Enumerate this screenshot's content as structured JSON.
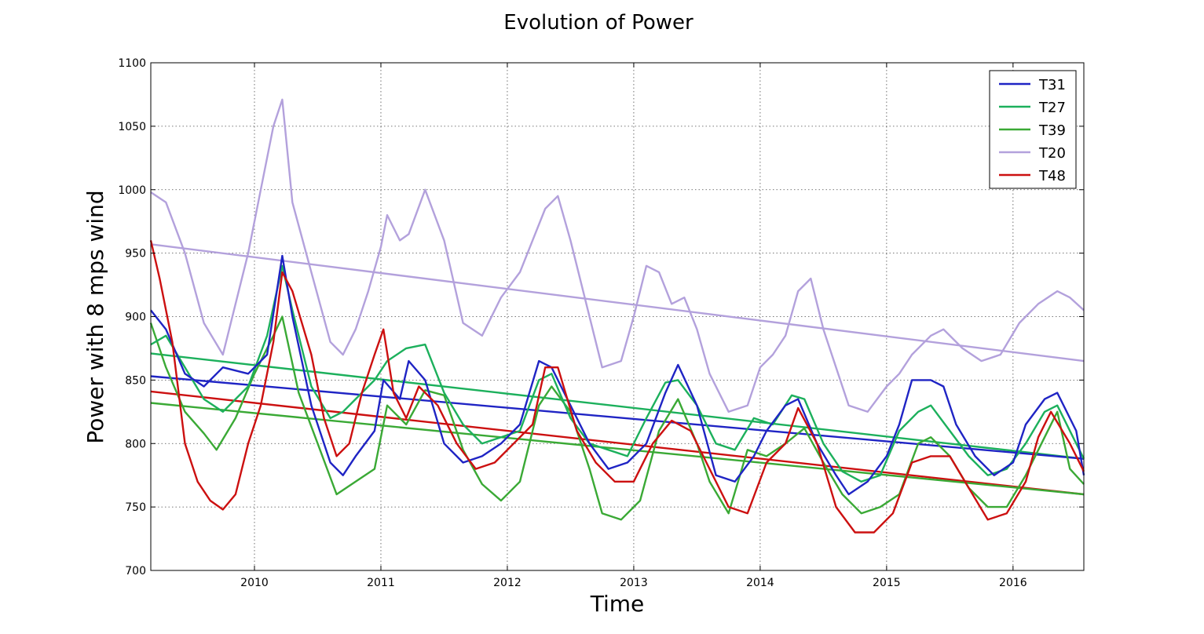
{
  "chart_data": {
    "type": "line",
    "title": "Evolution of Power",
    "xlabel": "Time",
    "ylabel": "Power with 8 mps wind",
    "xlim": [
      2009.18,
      2016.56
    ],
    "ylim": [
      700,
      1100
    ],
    "xticks": [
      2010,
      2011,
      2012,
      2013,
      2014,
      2015,
      2016
    ],
    "xtick_labels": [
      "2010",
      "2011",
      "2012",
      "2013",
      "2014",
      "2015",
      "2016"
    ],
    "yticks": [
      700,
      750,
      800,
      850,
      900,
      950,
      1000,
      1050,
      1100
    ],
    "ytick_labels": [
      "700",
      "750",
      "800",
      "850",
      "900",
      "950",
      "1000",
      "1050",
      "1100"
    ],
    "grid": true,
    "legend_position": "top-right",
    "series": [
      {
        "name": "T31",
        "color": "#1f24c4",
        "x": [
          2009.18,
          2009.3,
          2009.45,
          2009.6,
          2009.75,
          2009.95,
          2010.1,
          2010.22,
          2010.3,
          2010.45,
          2010.6,
          2010.7,
          2010.8,
          2010.95,
          2011.02,
          2011.15,
          2011.22,
          2011.35,
          2011.5,
          2011.65,
          2011.8,
          2011.95,
          2012.1,
          2012.25,
          2012.35,
          2012.5,
          2012.65,
          2012.8,
          2012.95,
          2013.1,
          2013.25,
          2013.35,
          2013.5,
          2013.65,
          2013.8,
          2013.95,
          2014.05,
          2014.2,
          2014.3,
          2014.45,
          2014.6,
          2014.7,
          2014.85,
          2015.0,
          2015.1,
          2015.2,
          2015.35,
          2015.45,
          2015.55,
          2015.7,
          2015.85,
          2016.0,
          2016.1,
          2016.25,
          2016.35,
          2016.5,
          2016.56
        ],
        "y": [
          905,
          890,
          855,
          845,
          860,
          855,
          870,
          948,
          900,
          830,
          785,
          775,
          790,
          810,
          850,
          835,
          865,
          850,
          800,
          785,
          790,
          800,
          815,
          865,
          860,
          830,
          800,
          780,
          785,
          800,
          840,
          862,
          830,
          775,
          770,
          790,
          810,
          830,
          835,
          800,
          775,
          760,
          770,
          790,
          815,
          850,
          850,
          845,
          815,
          790,
          775,
          785,
          815,
          835,
          840,
          810,
          775
        ]
      },
      {
        "name": "T27",
        "color": "#1cb05c",
        "x": [
          2009.18,
          2009.3,
          2009.45,
          2009.6,
          2009.75,
          2009.95,
          2010.1,
          2010.22,
          2010.3,
          2010.45,
          2010.6,
          2010.7,
          2010.8,
          2010.95,
          2011.05,
          2011.2,
          2011.35,
          2011.5,
          2011.65,
          2011.8,
          2011.95,
          2012.1,
          2012.25,
          2012.35,
          2012.5,
          2012.65,
          2012.8,
          2012.95,
          2013.1,
          2013.25,
          2013.35,
          2013.5,
          2013.65,
          2013.8,
          2013.95,
          2014.1,
          2014.25,
          2014.35,
          2014.5,
          2014.65,
          2014.8,
          2014.95,
          2015.1,
          2015.25,
          2015.35,
          2015.5,
          2015.65,
          2015.8,
          2015.95,
          2016.1,
          2016.25,
          2016.35,
          2016.5,
          2016.56
        ],
        "y": [
          878,
          885,
          860,
          835,
          825,
          845,
          885,
          940,
          905,
          845,
          820,
          825,
          835,
          850,
          865,
          875,
          878,
          840,
          815,
          800,
          805,
          810,
          850,
          855,
          820,
          800,
          795,
          790,
          820,
          848,
          850,
          830,
          800,
          795,
          820,
          815,
          838,
          835,
          800,
          778,
          770,
          775,
          810,
          825,
          830,
          810,
          790,
          775,
          780,
          800,
          825,
          830,
          800,
          788
        ]
      },
      {
        "name": "T39",
        "color": "#3aa935",
        "x": [
          2009.18,
          2009.3,
          2009.45,
          2009.6,
          2009.7,
          2009.85,
          2010.0,
          2010.15,
          2010.22,
          2010.35,
          2010.5,
          2010.65,
          2010.8,
          2010.95,
          2011.05,
          2011.2,
          2011.35,
          2011.5,
          2011.65,
          2011.8,
          2011.95,
          2012.1,
          2012.25,
          2012.35,
          2012.5,
          2012.65,
          2012.75,
          2012.9,
          2013.05,
          2013.2,
          2013.35,
          2013.5,
          2013.6,
          2013.75,
          2013.9,
          2014.05,
          2014.2,
          2014.35,
          2014.5,
          2014.65,
          2014.8,
          2014.95,
          2015.1,
          2015.25,
          2015.35,
          2015.5,
          2015.65,
          2015.8,
          2015.95,
          2016.1,
          2016.25,
          2016.35,
          2016.45,
          2016.56
        ],
        "y": [
          895,
          860,
          825,
          808,
          795,
          820,
          855,
          885,
          900,
          840,
          800,
          760,
          770,
          780,
          830,
          815,
          842,
          838,
          795,
          768,
          755,
          770,
          830,
          845,
          825,
          780,
          745,
          740,
          755,
          810,
          835,
          800,
          770,
          745,
          795,
          790,
          800,
          812,
          785,
          760,
          745,
          750,
          760,
          800,
          805,
          790,
          765,
          750,
          750,
          775,
          805,
          825,
          780,
          768
        ]
      },
      {
        "name": "T20",
        "color": "#b3a1dc",
        "x": [
          2009.18,
          2009.3,
          2009.45,
          2009.6,
          2009.75,
          2009.95,
          2010.05,
          2010.15,
          2010.22,
          2010.3,
          2010.45,
          2010.6,
          2010.7,
          2010.8,
          2010.9,
          2011.0,
          2011.05,
          2011.15,
          2011.22,
          2011.35,
          2011.5,
          2011.65,
          2011.8,
          2011.95,
          2012.1,
          2012.2,
          2012.3,
          2012.4,
          2012.5,
          2012.6,
          2012.75,
          2012.9,
          2013.0,
          2013.1,
          2013.2,
          2013.3,
          2013.4,
          2013.5,
          2013.6,
          2013.75,
          2013.9,
          2014.0,
          2014.1,
          2014.2,
          2014.3,
          2014.4,
          2014.5,
          2014.6,
          2014.7,
          2014.85,
          2015.0,
          2015.1,
          2015.2,
          2015.35,
          2015.45,
          2015.6,
          2015.75,
          2015.9,
          2016.05,
          2016.2,
          2016.35,
          2016.45,
          2016.56
        ],
        "y": [
          998,
          990,
          950,
          895,
          870,
          950,
          1000,
          1050,
          1071,
          990,
          935,
          880,
          870,
          890,
          920,
          955,
          980,
          960,
          965,
          1000,
          960,
          895,
          885,
          915,
          935,
          960,
          985,
          995,
          960,
          920,
          860,
          865,
          900,
          940,
          935,
          910,
          915,
          890,
          855,
          825,
          830,
          860,
          870,
          885,
          920,
          930,
          890,
          860,
          830,
          825,
          845,
          855,
          870,
          885,
          890,
          875,
          865,
          870,
          895,
          910,
          920,
          915,
          905
        ]
      },
      {
        "name": "T48",
        "color": "#cc1010",
        "x": [
          2009.18,
          2009.25,
          2009.35,
          2009.45,
          2009.55,
          2009.65,
          2009.75,
          2009.85,
          2009.95,
          2010.05,
          2010.15,
          2010.22,
          2010.3,
          2010.45,
          2010.55,
          2010.65,
          2010.75,
          2010.85,
          2010.95,
          2011.02,
          2011.1,
          2011.2,
          2011.3,
          2011.45,
          2011.6,
          2011.75,
          2011.9,
          2012.05,
          2012.2,
          2012.3,
          2012.4,
          2012.55,
          2012.7,
          2012.85,
          2013.0,
          2013.15,
          2013.3,
          2013.45,
          2013.6,
          2013.75,
          2013.9,
          2014.05,
          2014.2,
          2014.3,
          2014.45,
          2014.6,
          2014.75,
          2014.9,
          2015.05,
          2015.2,
          2015.35,
          2015.5,
          2015.65,
          2015.8,
          2015.95,
          2016.1,
          2016.2,
          2016.3,
          2016.45,
          2016.56
        ],
        "y": [
          960,
          930,
          880,
          800,
          770,
          755,
          748,
          760,
          800,
          830,
          880,
          935,
          920,
          870,
          820,
          790,
          800,
          840,
          870,
          890,
          840,
          820,
          845,
          830,
          800,
          780,
          785,
          800,
          815,
          860,
          860,
          810,
          785,
          770,
          770,
          800,
          818,
          810,
          780,
          750,
          745,
          785,
          800,
          828,
          800,
          750,
          730,
          730,
          745,
          785,
          790,
          790,
          765,
          740,
          745,
          770,
          805,
          825,
          800,
          778
        ]
      },
      {
        "color": "#1f24c4",
        "x": [
          2009.18,
          2016.56
        ],
        "y": [
          853,
          788
        ]
      },
      {
        "color": "#1cb05c",
        "x": [
          2009.18,
          2016.56
        ],
        "y": [
          871,
          788
        ]
      },
      {
        "color": "#3aa935",
        "x": [
          2009.18,
          2016.56
        ],
        "y": [
          832,
          760
        ]
      },
      {
        "color": "#b3a1dc",
        "x": [
          2009.18,
          2016.56
        ],
        "y": [
          957,
          865
        ]
      },
      {
        "color": "#cc1010",
        "x": [
          2009.18,
          2016.56
        ],
        "y": [
          841,
          760
        ]
      }
    ]
  }
}
